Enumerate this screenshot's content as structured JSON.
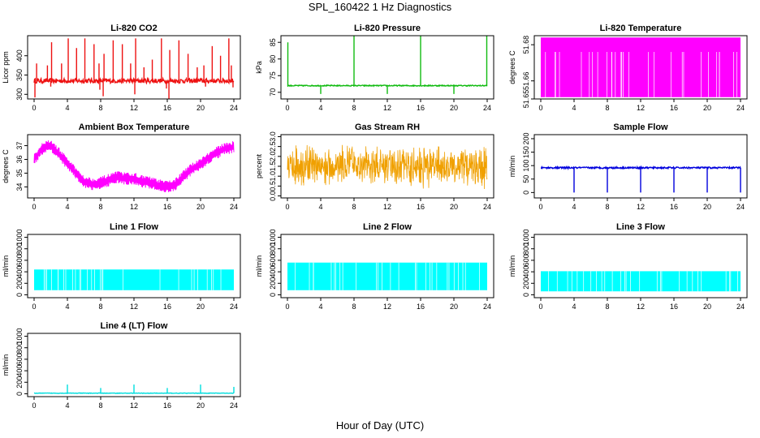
{
  "figure": {
    "title": "SPL_160422  1 Hz Diagnostics",
    "xlabel": "Hour of Day (UTC)"
  },
  "chart_data": [
    {
      "type": "line",
      "title": "Li-820 CO2",
      "xlabel": "",
      "ylabel": "Licor ppm",
      "color": "#ee1111",
      "xlim": [
        0,
        24
      ],
      "ylim": [
        288,
        452
      ],
      "x_ticks": [
        0,
        4,
        8,
        12,
        16,
        20,
        24
      ],
      "y_ticks": [
        300,
        350,
        400
      ],
      "baseline": 335,
      "noise": 6,
      "spikes_up": [
        [
          0.3,
          380
        ],
        [
          1.6,
          375
        ],
        [
          2.1,
          435
        ],
        [
          3.3,
          380
        ],
        [
          4.1,
          445
        ],
        [
          5.1,
          420
        ],
        [
          6.1,
          445
        ],
        [
          7.2,
          430
        ],
        [
          7.8,
          380
        ],
        [
          8.4,
          405
        ],
        [
          9.5,
          440
        ],
        [
          10.6,
          430
        ],
        [
          11.6,
          380
        ],
        [
          12.2,
          445
        ],
        [
          13.2,
          370
        ],
        [
          14.2,
          390
        ],
        [
          15.3,
          445
        ],
        [
          16.3,
          415
        ],
        [
          17.4,
          440
        ],
        [
          18.5,
          405
        ],
        [
          19.6,
          370
        ],
        [
          20.4,
          375
        ],
        [
          21.4,
          425
        ],
        [
          22.4,
          400
        ],
        [
          23.4,
          445
        ],
        [
          23.7,
          375
        ]
      ],
      "spikes_down": [
        [
          0.1,
          292
        ],
        [
          2.0,
          320
        ],
        [
          7.9,
          312
        ],
        [
          8.3,
          295
        ],
        [
          12.1,
          300
        ],
        [
          15.9,
          315
        ],
        [
          16.2,
          288
        ],
        [
          20.6,
          320
        ],
        [
          23.9,
          318
        ]
      ]
    },
    {
      "type": "line",
      "title": "Li-820 Pressure",
      "xlabel": "",
      "ylabel": "kPa",
      "color": "#11bb11",
      "xlim": [
        0,
        24
      ],
      "ylim": [
        68,
        87
      ],
      "x_ticks": [
        0,
        4,
        8,
        12,
        16,
        20,
        24
      ],
      "y_ticks": [
        70,
        75,
        80,
        85
      ],
      "baseline": 72,
      "noise": 0.15,
      "spikes_up": [
        [
          0.05,
          85
        ],
        [
          8.0,
          87
        ],
        [
          16.0,
          87
        ],
        [
          23.95,
          87
        ]
      ],
      "spikes_down": [
        [
          4.0,
          69.5
        ],
        [
          12.0,
          69.5
        ],
        [
          20.0,
          69.5
        ]
      ]
    },
    {
      "type": "line",
      "title": "Li-820 Temperature",
      "xlabel": "",
      "ylabel": "degrees C",
      "color": "#ff00ff",
      "xlim": [
        0,
        24
      ],
      "ylim": [
        51.65,
        51.685
      ],
      "x_ticks": [
        0,
        4,
        8,
        12,
        16,
        20,
        24
      ],
      "y_ticks": [
        51.65,
        51.66,
        51.68
      ],
      "band_high": 51.684,
      "mid": 51.676,
      "band_low": 51.651
    },
    {
      "type": "line",
      "title": "Ambient Box Temperature",
      "xlabel": "",
      "ylabel": "degrees C",
      "color": "#ff00ff",
      "xlim": [
        0,
        24
      ],
      "ylim": [
        33.2,
        37.8
      ],
      "x_ticks": [
        0,
        4,
        8,
        12,
        16,
        20,
        24
      ],
      "y_ticks": [
        34,
        35,
        36,
        37
      ],
      "trend_x": [
        0,
        1,
        2,
        3,
        4,
        5,
        6,
        7,
        8,
        9,
        10,
        11,
        12,
        13,
        14,
        15,
        16,
        17,
        18,
        19,
        20,
        21,
        22,
        23,
        24
      ],
      "trend_y": [
        36.0,
        36.8,
        37.0,
        36.4,
        35.7,
        35.0,
        34.4,
        34.2,
        34.3,
        34.5,
        34.7,
        34.6,
        34.6,
        34.4,
        34.3,
        34.1,
        34.0,
        34.2,
        34.8,
        35.3,
        35.7,
        36.1,
        36.5,
        36.8,
        36.9
      ],
      "noise": 0.45
    },
    {
      "type": "line",
      "title": "Gas Stream RH",
      "xlabel": "",
      "ylabel": "percent",
      "color": "#f0a000",
      "xlim": [
        0,
        24
      ],
      "ylim": [
        -0.1,
        3.1
      ],
      "x_ticks": [
        0,
        4,
        8,
        12,
        16,
        20,
        24
      ],
      "y_ticks": [
        0.0,
        0.5,
        1.0,
        1.5,
        2.0,
        2.5,
        3.0
      ],
      "mean": 1.5,
      "noise": 0.9
    },
    {
      "type": "line",
      "title": "Sample Flow",
      "xlabel": "",
      "ylabel": "ml/min",
      "color": "#0000dd",
      "xlim": [
        0,
        24
      ],
      "ylim": [
        -20,
        215
      ],
      "x_ticks": [
        0,
        4,
        8,
        12,
        16,
        20,
        24
      ],
      "y_ticks": [
        0,
        50,
        100,
        150,
        200
      ],
      "baseline": 92,
      "noise": 3,
      "spikes_up": [],
      "spikes_down": [
        [
          4.0,
          0
        ],
        [
          8.0,
          0
        ],
        [
          12.0,
          0
        ],
        [
          16.0,
          0
        ],
        [
          20.0,
          0
        ],
        [
          24.0,
          0
        ]
      ]
    },
    {
      "type": "line",
      "title": "Line 1 Flow",
      "xlabel": "",
      "ylabel": "ml/min",
      "color": "#00ffff",
      "xlim": [
        0,
        24
      ],
      "ylim": [
        -50,
        1050
      ],
      "x_ticks": [
        0,
        4,
        8,
        12,
        16,
        20,
        24
      ],
      "y_ticks": [
        0,
        200,
        400,
        600,
        800,
        1000
      ],
      "band_high": 440,
      "band_low": 80,
      "end_high": 420
    },
    {
      "type": "line",
      "title": "Line 2 Flow",
      "xlabel": "",
      "ylabel": "ml/min",
      "color": "#00ffff",
      "xlim": [
        0,
        24
      ],
      "ylim": [
        -50,
        1050
      ],
      "x_ticks": [
        0,
        4,
        8,
        12,
        16,
        20,
        24
      ],
      "y_ticks": [
        0,
        200,
        400,
        600,
        800,
        1000
      ],
      "band_high": 560,
      "band_low": 80,
      "end_high": 520
    },
    {
      "type": "line",
      "title": "Line 3 Flow",
      "xlabel": "",
      "ylabel": "ml/min",
      "color": "#00ffff",
      "xlim": [
        0,
        24
      ],
      "ylim": [
        -50,
        1050
      ],
      "x_ticks": [
        0,
        4,
        8,
        12,
        16,
        20,
        24
      ],
      "y_ticks": [
        0,
        200,
        400,
        600,
        800,
        1000
      ],
      "band_high": 410,
      "band_low": 60,
      "end_high": 400
    },
    {
      "type": "line",
      "title": "Line 4 (LT) Flow",
      "xlabel": "",
      "ylabel": "ml/min",
      "color": "#00dddd",
      "xlim": [
        0,
        24
      ],
      "ylim": [
        -50,
        1050
      ],
      "x_ticks": [
        0,
        4,
        8,
        12,
        16,
        20,
        24
      ],
      "y_ticks": [
        0,
        200,
        400,
        600,
        800,
        1000
      ],
      "baseline": 10,
      "noise": 4,
      "spikes_up": [
        [
          4.0,
          160
        ],
        [
          8.0,
          100
        ],
        [
          12.0,
          160
        ],
        [
          16.0,
          100
        ],
        [
          20.0,
          160
        ],
        [
          24.0,
          120
        ]
      ],
      "spikes_down": []
    }
  ]
}
